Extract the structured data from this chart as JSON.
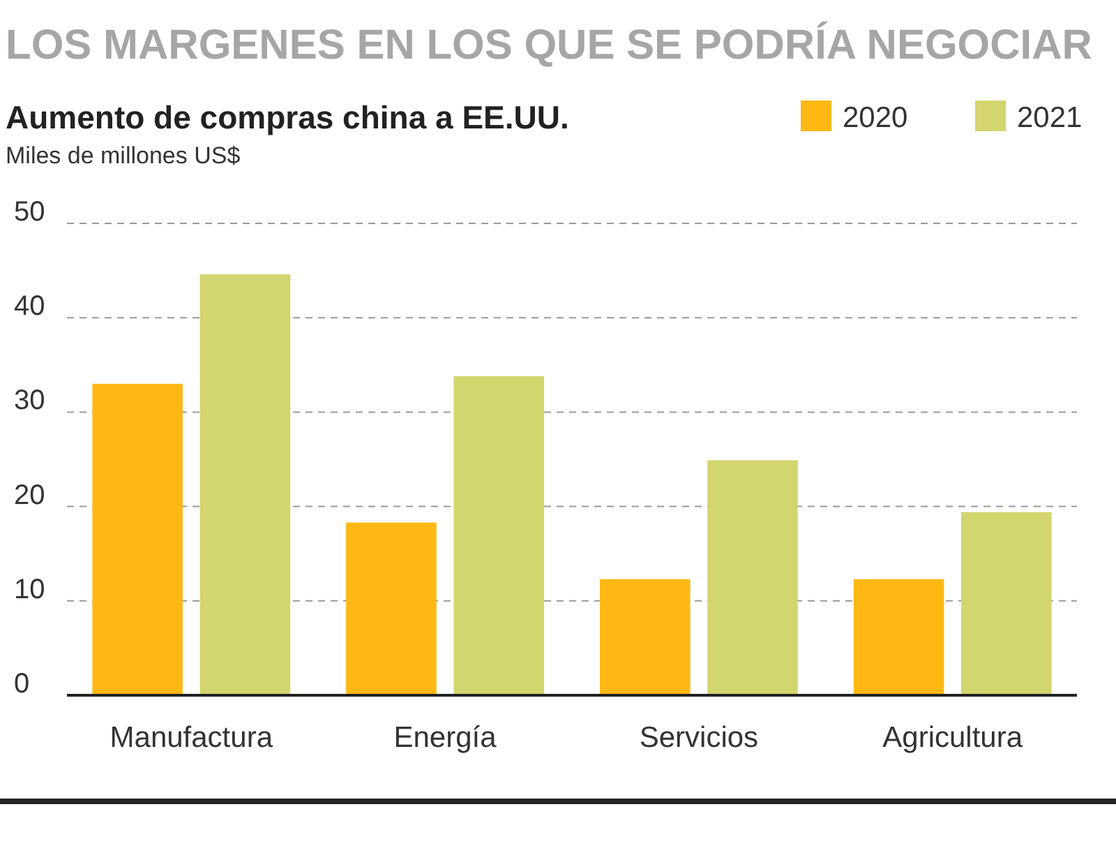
{
  "chart_data": {
    "type": "bar",
    "title": "LOS MARGENES EN LOS QUE SE PODRÍA NEGOCIAR",
    "subtitle": "Aumento de compras china a EE.UU.",
    "ylabel": "Miles de millones US$",
    "categories": [
      "Manufactura",
      "Energía",
      "Servicios",
      "Agricultura"
    ],
    "series": [
      {
        "name": "2020",
        "color": "#fdb813",
        "values": [
          33,
          18.3,
          12.3,
          12.3
        ]
      },
      {
        "name": "2021",
        "color": "#d3d56e",
        "values": [
          44.6,
          33.8,
          24.9,
          19.4
        ]
      }
    ],
    "ylim": [
      0,
      50
    ],
    "yticks": [
      0,
      10,
      20,
      30,
      40,
      50
    ],
    "grid": "y",
    "legend": "top right"
  }
}
